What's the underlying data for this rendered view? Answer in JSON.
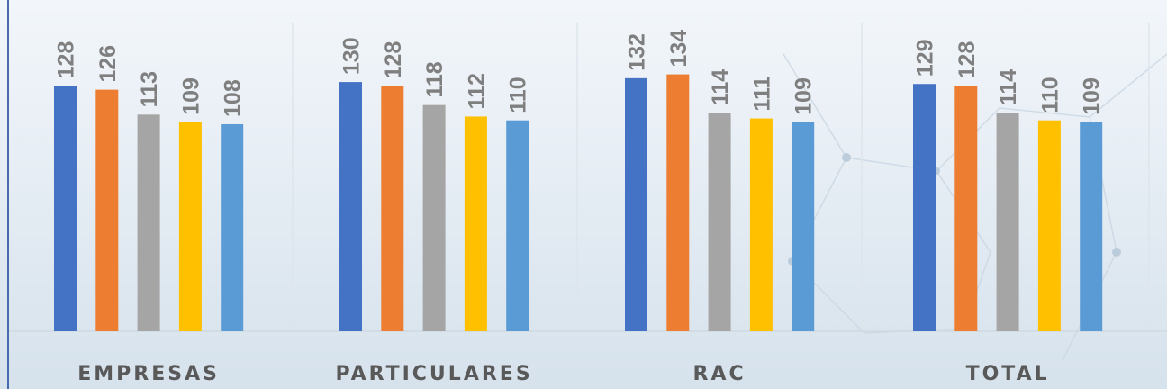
{
  "chart_data": {
    "type": "bar",
    "categories": [
      "EMPRESAS",
      "PARTICULARES",
      "RAC",
      "TOTAL"
    ],
    "series": [
      {
        "values": [
          128,
          130,
          132,
          129
        ],
        "color": "#4472c4"
      },
      {
        "values": [
          126,
          128,
          134,
          128
        ],
        "color": "#ed7d31"
      },
      {
        "values": [
          113,
          118,
          114,
          114
        ],
        "color": "#a5a5a5"
      },
      {
        "values": [
          109,
          112,
          111,
          110
        ],
        "color": "#ffc000"
      },
      {
        "values": [
          108,
          110,
          109,
          109
        ],
        "color": "#5b9bd5"
      }
    ],
    "ylim": [
      0,
      150
    ],
    "grid": false,
    "legend": "none",
    "title": "",
    "xlabel": "",
    "ylabel": ""
  }
}
